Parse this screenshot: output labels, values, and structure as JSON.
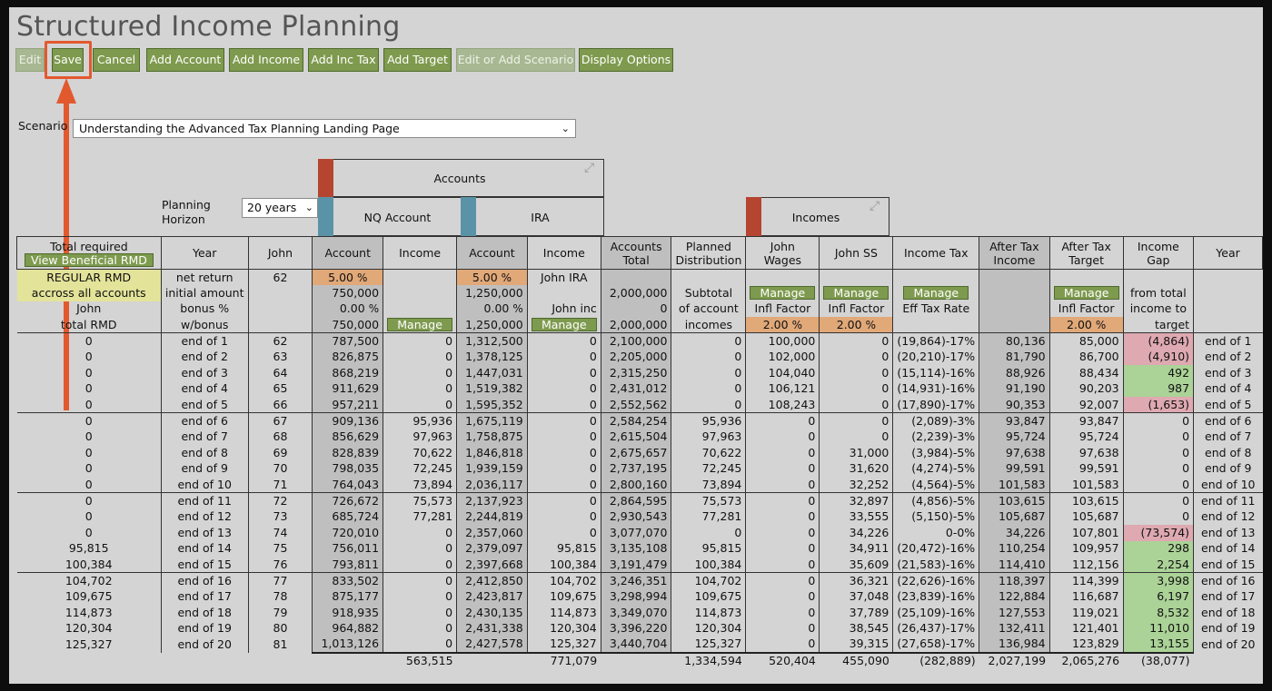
{
  "app": {
    "title": "Structured Income Planning"
  },
  "toolbar": {
    "buttons": [
      {
        "label": "Edit",
        "disabled": true
      },
      {
        "label": "Save",
        "disabled": false
      },
      {
        "label": "Cancel",
        "disabled": false
      },
      {
        "label": "Add Account",
        "disabled": false
      },
      {
        "label": "Add Income",
        "disabled": false
      },
      {
        "label": "Add Inc Tax",
        "disabled": false
      },
      {
        "label": "Add Target",
        "disabled": false
      },
      {
        "label": "Edit or Add Scenario",
        "disabled": true
      },
      {
        "label": "Display Options",
        "disabled": false
      }
    ]
  },
  "scenario": {
    "label": "Scenario",
    "value": "Understanding the Advanced Tax Planning Landing Page"
  },
  "planning": {
    "label_line1": "Planning",
    "label_line2": "Horizon",
    "value": "20 years"
  },
  "groups": {
    "accounts": "Accounts",
    "nq_account": "NQ Account",
    "ira": "IRA",
    "incomes": "Incomes"
  },
  "colors": {
    "accounts_strip": "#b54530",
    "account_strip": "#5a93a8",
    "incomes_strip": "#b54530",
    "button": "#7e9a4e",
    "highlight": "#e2592f"
  },
  "headers": {
    "total_required": "Total required",
    "view_rmd": "View Beneficial RMD",
    "year": "Year",
    "john": "John",
    "nq_account": "Account",
    "nq_income": "Income",
    "ira_account": "Account",
    "ira_income": "Income",
    "accounts_total": "Accounts\nTotal",
    "planned_dist": "Planned\nDistribution",
    "john_wages": "John\nWages",
    "john_ss": "John SS",
    "income_tax": "Income Tax",
    "after_tax_income": "After Tax\nIncome",
    "after_tax_target": "After Tax\nTarget",
    "income_gap": "Income\nGap",
    "year2": "Year"
  },
  "params": {
    "rmd_line1": "REGULAR RMD",
    "rmd_line2": "accross all accounts",
    "rmd_line3": "John",
    "rmd_line4": "total RMD",
    "year_line1": "net return",
    "year_line2": "initial amount",
    "year_line3": "bonus %",
    "year_line4": "w/bonus",
    "john_age": "62",
    "nq_return": "5.00",
    "nq_initial": "750,000",
    "nq_bonus": "0.00",
    "nq_wbonus": "750,000",
    "manage": "Manage",
    "pct": "%",
    "ira_return": "5.00",
    "ira_initial": "1,250,000",
    "ira_bonus": "0.00",
    "ira_wbonus": "1,250,000",
    "ira_inc_line1": "John IRA",
    "ira_inc_line3": "John inc",
    "acct_total_initial": "2,000,000",
    "acct_total_bonus": "0",
    "acct_total_wbonus": "2,000,000",
    "pd_line2": "Subtotal",
    "pd_line3": "of account",
    "pd_line4": "incomes",
    "infl_factor": "Infl Factor",
    "wages_infl": "2.00",
    "ss_infl": "2.00",
    "eff_tax_rate": "Eff Tax Rate",
    "target_infl": "2.00",
    "gap_line2": "from total",
    "gap_line3": "income to",
    "gap_line4": "target"
  },
  "rows": [
    [
      "0",
      "end of 1",
      "62",
      "787,500",
      "0",
      "1,312,500",
      "0",
      "2,100,000",
      "0",
      "100,000",
      "0",
      "(19,864)-17%",
      "80,136",
      "85,000",
      "(4,864)",
      "end of 1"
    ],
    [
      "0",
      "end of 2",
      "63",
      "826,875",
      "0",
      "1,378,125",
      "0",
      "2,205,000",
      "0",
      "102,000",
      "0",
      "(20,210)-17%",
      "81,790",
      "86,700",
      "(4,910)",
      "end of 2"
    ],
    [
      "0",
      "end of 3",
      "64",
      "868,219",
      "0",
      "1,447,031",
      "0",
      "2,315,250",
      "0",
      "104,040",
      "0",
      "(15,114)-16%",
      "88,926",
      "88,434",
      "492",
      "end of 3"
    ],
    [
      "0",
      "end of 4",
      "65",
      "911,629",
      "0",
      "1,519,382",
      "0",
      "2,431,012",
      "0",
      "106,121",
      "0",
      "(14,931)-16%",
      "91,190",
      "90,203",
      "987",
      "end of 4"
    ],
    [
      "0",
      "end of 5",
      "66",
      "957,211",
      "0",
      "1,595,352",
      "0",
      "2,552,562",
      "0",
      "108,243",
      "0",
      "(17,890)-17%",
      "90,353",
      "92,007",
      "(1,653)",
      "end of 5"
    ],
    [
      "0",
      "end of 6",
      "67",
      "909,136",
      "95,936",
      "1,675,119",
      "0",
      "2,584,254",
      "95,936",
      "0",
      "0",
      "(2,089)-3%",
      "93,847",
      "93,847",
      "0",
      "end of 6"
    ],
    [
      "0",
      "end of 7",
      "68",
      "856,629",
      "97,963",
      "1,758,875",
      "0",
      "2,615,504",
      "97,963",
      "0",
      "0",
      "(2,239)-3%",
      "95,724",
      "95,724",
      "0",
      "end of 7"
    ],
    [
      "0",
      "end of 8",
      "69",
      "828,839",
      "70,622",
      "1,846,818",
      "0",
      "2,675,657",
      "70,622",
      "0",
      "31,000",
      "(3,984)-5%",
      "97,638",
      "97,638",
      "0",
      "end of 8"
    ],
    [
      "0",
      "end of 9",
      "70",
      "798,035",
      "72,245",
      "1,939,159",
      "0",
      "2,737,195",
      "72,245",
      "0",
      "31,620",
      "(4,274)-5%",
      "99,591",
      "99,591",
      "0",
      "end of 9"
    ],
    [
      "0",
      "end of 10",
      "71",
      "764,043",
      "73,894",
      "2,036,117",
      "0",
      "2,800,160",
      "73,894",
      "0",
      "32,252",
      "(4,564)-5%",
      "101,583",
      "101,583",
      "0",
      "end of 10"
    ],
    [
      "0",
      "end of 11",
      "72",
      "726,672",
      "75,573",
      "2,137,923",
      "0",
      "2,864,595",
      "75,573",
      "0",
      "32,897",
      "(4,856)-5%",
      "103,615",
      "103,615",
      "0",
      "end of 11"
    ],
    [
      "0",
      "end of 12",
      "73",
      "685,724",
      "77,281",
      "2,244,819",
      "0",
      "2,930,543",
      "77,281",
      "0",
      "33,555",
      "(5,150)-5%",
      "105,687",
      "105,687",
      "0",
      "end of 12"
    ],
    [
      "0",
      "end of 13",
      "74",
      "720,010",
      "0",
      "2,357,060",
      "0",
      "3,077,070",
      "0",
      "0",
      "34,226",
      "0-0%",
      "34,226",
      "107,801",
      "(73,574)",
      "end of 13"
    ],
    [
      "95,815",
      "end of 14",
      "75",
      "756,011",
      "0",
      "2,379,097",
      "95,815",
      "3,135,108",
      "95,815",
      "0",
      "34,911",
      "(20,472)-16%",
      "110,254",
      "109,957",
      "298",
      "end of 14"
    ],
    [
      "100,384",
      "end of 15",
      "76",
      "793,811",
      "0",
      "2,397,668",
      "100,384",
      "3,191,479",
      "100,384",
      "0",
      "35,609",
      "(21,583)-16%",
      "114,410",
      "112,156",
      "2,254",
      "end of 15"
    ],
    [
      "104,702",
      "end of 16",
      "77",
      "833,502",
      "0",
      "2,412,850",
      "104,702",
      "3,246,351",
      "104,702",
      "0",
      "36,321",
      "(22,626)-16%",
      "118,397",
      "114,399",
      "3,998",
      "end of 16"
    ],
    [
      "109,675",
      "end of 17",
      "78",
      "875,177",
      "0",
      "2,423,817",
      "109,675",
      "3,298,994",
      "109,675",
      "0",
      "37,048",
      "(23,839)-16%",
      "122,884",
      "116,687",
      "6,197",
      "end of 17"
    ],
    [
      "114,873",
      "end of 18",
      "79",
      "918,935",
      "0",
      "2,430,135",
      "114,873",
      "3,349,070",
      "114,873",
      "0",
      "37,789",
      "(25,109)-16%",
      "127,553",
      "119,021",
      "8,532",
      "end of 18"
    ],
    [
      "120,304",
      "end of 19",
      "80",
      "964,882",
      "0",
      "2,431,338",
      "120,304",
      "3,396,220",
      "120,304",
      "0",
      "38,545",
      "(26,437)-17%",
      "132,411",
      "121,401",
      "11,010",
      "end of 19"
    ],
    [
      "125,327",
      "end of 20",
      "81",
      "1,013,126",
      "0",
      "2,427,578",
      "125,327",
      "3,440,704",
      "125,327",
      "0",
      "39,315",
      "(27,658)-17%",
      "136,984",
      "123,829",
      "13,155",
      "end of 20"
    ]
  ],
  "gap_colors": [
    "pink",
    "pink",
    "green",
    "green",
    "pink",
    "",
    "",
    "",
    "",
    "",
    "",
    "",
    "pink",
    "green",
    "green",
    "green",
    "green",
    "green",
    "green",
    "green"
  ],
  "totals": [
    "",
    "",
    "",
    "",
    "563,515",
    "",
    "771,079",
    "",
    "1,334,594",
    "520,404",
    "455,090",
    "(282,889)",
    "2,027,199",
    "2,065,276",
    "(38,077)",
    ""
  ]
}
